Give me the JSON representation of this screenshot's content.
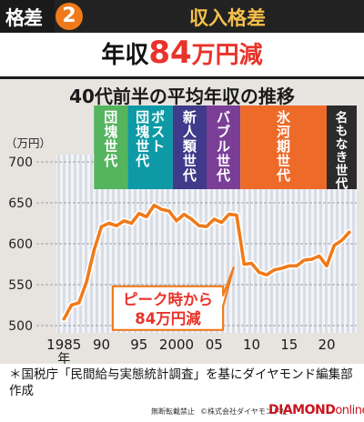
{
  "header": {
    "tag_label": "格差",
    "tag_number": "2",
    "title": "収入格差"
  },
  "headline": {
    "prefix": "年収",
    "amount": "84",
    "suffix": "万円減"
  },
  "colors": {
    "accent_orange": "#f07a1a",
    "headline_red": "#e8332a",
    "line": "#f07a1a",
    "era_1": "#55b45e",
    "era_2": "#0d9aa6",
    "era_3": "#3f3a8a",
    "era_4": "#7a3e97",
    "era_5": "#ee6a28",
    "era_6": "#2b2b2b"
  },
  "chart_data": {
    "type": "line",
    "title": "40代前半の平均年収の推移",
    "ylabel": "（万円）",
    "xlabel": "年",
    "ylim": [
      500,
      700
    ],
    "xlim": [
      1984,
      2024
    ],
    "y_ticks": [
      500,
      550,
      600,
      650,
      700
    ],
    "x_ticks": [
      {
        "value": 1985,
        "label": "1985"
      },
      {
        "value": 1990,
        "label": "90"
      },
      {
        "value": 1995,
        "label": "95"
      },
      {
        "value": 2000,
        "label": "2000"
      },
      {
        "value": 2005,
        "label": "05"
      },
      {
        "value": 2010,
        "label": "10"
      },
      {
        "value": 2015,
        "label": "15"
      },
      {
        "value": 2020,
        "label": "20"
      }
    ],
    "grid": true,
    "series": [
      {
        "x": [
          1985,
          1986,
          1987,
          1988,
          1989,
          1990,
          1991,
          1992,
          1993,
          1994,
          1995,
          1996,
          1997,
          1998,
          1999,
          2000,
          2001,
          2002,
          2003,
          2004,
          2005,
          2006,
          2007,
          2008,
          2009,
          2010,
          2011,
          2012,
          2013,
          2014,
          2015,
          2016,
          2017,
          2018,
          2019,
          2020,
          2021,
          2022,
          2023
        ],
        "y": [
          508,
          525,
          528,
          553,
          592,
          621,
          625,
          622,
          628,
          625,
          637,
          633,
          647,
          642,
          640,
          628,
          636,
          630,
          622,
          621,
          630,
          626,
          636,
          635,
          575,
          576,
          565,
          562,
          568,
          570,
          573,
          573,
          580,
          581,
          585,
          573,
          598,
          604,
          614
        ]
      }
    ],
    "eras": [
      {
        "label": "団塊世代",
        "from": 1989,
        "to": 1993.5,
        "color": "#55b45e"
      },
      {
        "label": "ポスト\n団塊世代",
        "from": 1993.5,
        "to": 1999.5,
        "color": "#0d9aa6"
      },
      {
        "label": "新人類世代",
        "from": 1999.5,
        "to": 2004,
        "color": "#3f3a8a"
      },
      {
        "label": "バブル世代",
        "from": 2004,
        "to": 2008.5,
        "color": "#7a3e97"
      },
      {
        "label": "氷河期世代",
        "from": 2008.5,
        "to": 2020,
        "color": "#ee6a28"
      },
      {
        "label": "名もなき世代",
        "from": 2020,
        "to": 2024,
        "color": "#2b2b2b"
      }
    ],
    "annotation": {
      "lines": [
        "ピーク時から",
        "84万円減"
      ]
    }
  },
  "note": "＊国税庁「民間給与実態統計調査」を基にダイヤモンド編集部作成",
  "footer": {
    "reprint": "無断転載禁止",
    "credit": "©株式会社ダイヤモンド社",
    "brand_main": "DIAMOND",
    "brand_sub": "online"
  }
}
